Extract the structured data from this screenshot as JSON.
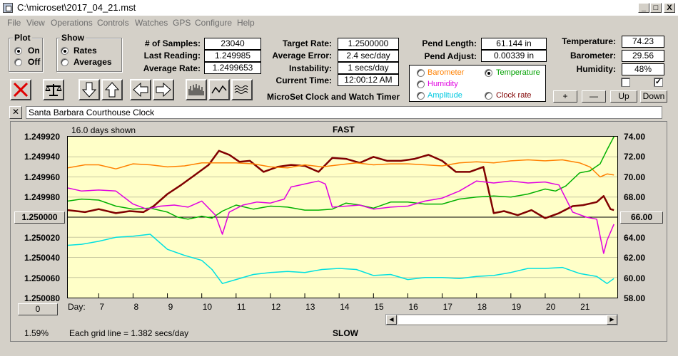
{
  "window": {
    "title": "C:\\microset\\2017_04_21.mst",
    "min": "_",
    "max": "□",
    "close": "X"
  },
  "menu": [
    "File",
    "View",
    "Operations",
    "Controls",
    "Watches",
    "GPS",
    "Configure",
    "Help"
  ],
  "plot_group": {
    "title": "Plot",
    "on": "On",
    "off": "Off",
    "selected": "On"
  },
  "show_group": {
    "title": "Show",
    "rates": "Rates",
    "averages": "Averages",
    "selected": "Rates"
  },
  "stats": {
    "samples_label": "# of Samples:",
    "samples": "23040",
    "last_label": "Last Reading:",
    "last": "1.249985",
    "avg_label": "Average Rate:",
    "avg": "1.2499653"
  },
  "rates": {
    "target_label": "Target Rate:",
    "target": "1.2500000",
    "err_label": "Average Error:",
    "err": "2.4 sec/day",
    "inst_label": "Instability:",
    "inst": "1 secs/day",
    "time_label": "Current Time:",
    "time": "12:00:12 AM"
  },
  "pend": {
    "length_label": "Pend Length:",
    "length": "61.144 in",
    "adjust_label": "Pend Adjust:",
    "adjust": "0.00339 in"
  },
  "env": {
    "temp_label": "Temperature:",
    "temp": "74.23",
    "baro_label": "Barometer:",
    "baro": "29.56",
    "hum_label": "Humidity:",
    "hum": "48%",
    "checkbox2": "✓"
  },
  "sensor_options": {
    "barometer": "Barometer",
    "temperature": "Temperature",
    "humidity": "Humidity",
    "amplitude": "Amplitude",
    "clock_rate": "Clock rate",
    "selected": "Temperature"
  },
  "controls": {
    "plus": "+",
    "minus": "—",
    "up": "Up",
    "down": "Down"
  },
  "app_name": "MicroSet Clock and Watch Timer",
  "clock_name": "Santa Barbara Courthouse Clock",
  "clear_btn": "✕",
  "chart_data": {
    "type": "line",
    "title_top": "FAST",
    "title_bottom": "SLOW",
    "days_shown": "16.0 days shown",
    "grid_note": "Each grid line = 1.382 secs/day",
    "percent": "1.59%",
    "day_label": "Day:",
    "x_days": [
      "7",
      "8",
      "9",
      "10",
      "11",
      "12",
      "13",
      "14",
      "15",
      "16",
      "17",
      "18",
      "19",
      "20",
      "21"
    ],
    "left_ticks": [
      "1.249920",
      "1.249940",
      "1.249960",
      "1.249980",
      "1.250000",
      "1.250020",
      "1.250040",
      "1.250060",
      "1.250080"
    ],
    "right_ticks": [
      "74.00",
      "72.00",
      "70.00",
      "68.00",
      "66.00",
      "64.00",
      "62.00",
      "60.00",
      "58.00"
    ],
    "left_button": "1.250000",
    "right_button": "66.00",
    "bottom_button": "0",
    "left_ylim": [
      1.25008,
      1.24992
    ],
    "right_ylim": [
      58.0,
      74.0
    ],
    "xlim": [
      6.1,
      22.1
    ],
    "series": [
      {
        "name": "Clock rate",
        "color": "#800000",
        "x": [
          6.1,
          6.6,
          7.0,
          7.5,
          7.9,
          8.3,
          8.6,
          9.0,
          9.4,
          9.8,
          10.2,
          10.5,
          10.8,
          11.1,
          11.4,
          11.8,
          12.2,
          12.6,
          13.0,
          13.4,
          13.8,
          14.2,
          14.6,
          15.0,
          15.4,
          15.8,
          16.2,
          16.6,
          17.0,
          17.4,
          17.8,
          18.2,
          18.5,
          18.8,
          19.2,
          19.6,
          20.0,
          20.4,
          20.8,
          21.1,
          21.5,
          21.7,
          21.9,
          22.0
        ],
        "y": [
          1.249993,
          1.249995,
          1.249992,
          1.249996,
          1.249994,
          1.249995,
          1.249989,
          1.249977,
          1.249968,
          1.249958,
          1.249948,
          1.249934,
          1.249938,
          1.249945,
          1.249944,
          1.249955,
          1.24995,
          1.249948,
          1.249949,
          1.249955,
          1.249941,
          1.249942,
          1.249946,
          1.24994,
          1.249944,
          1.249944,
          1.249942,
          1.249938,
          1.249944,
          1.249955,
          1.249955,
          1.24995,
          1.249996,
          1.249994,
          1.249998,
          1.249993,
          1.250001,
          1.249996,
          1.249989,
          1.249988,
          1.249985,
          1.249979,
          1.249992,
          1.249993
        ]
      },
      {
        "name": "Barometer",
        "color": "#ff8000",
        "x": [
          6.1,
          6.6,
          7.0,
          7.5,
          8.0,
          8.5,
          9.0,
          9.5,
          10.0,
          10.5,
          11.0,
          11.5,
          12.0,
          12.5,
          13.0,
          13.5,
          14.0,
          14.5,
          15.0,
          15.5,
          16.0,
          16.5,
          17.0,
          17.5,
          18.0,
          18.5,
          19.0,
          19.5,
          20.0,
          20.5,
          21.0,
          21.3,
          21.6,
          21.8,
          22.0
        ],
        "y": [
          70.9,
          71.2,
          71.2,
          70.8,
          71.3,
          71.2,
          71.0,
          71.1,
          71.4,
          71.4,
          71.4,
          71.3,
          71.0,
          70.9,
          71.2,
          71.0,
          71.2,
          71.4,
          71.2,
          71.3,
          71.3,
          71.2,
          71.1,
          71.4,
          71.5,
          71.4,
          71.6,
          71.7,
          71.6,
          71.7,
          71.4,
          71.0,
          70.0,
          70.3,
          70.2
        ]
      },
      {
        "name": "Temperature",
        "color": "#00b000",
        "x": [
          6.1,
          6.5,
          7.0,
          7.5,
          8.0,
          8.5,
          9.0,
          9.3,
          9.6,
          10.0,
          10.3,
          10.6,
          11.0,
          11.5,
          12.0,
          12.5,
          13.0,
          13.4,
          13.8,
          14.2,
          14.6,
          15.0,
          15.5,
          16.0,
          16.5,
          17.0,
          17.5,
          18.0,
          18.5,
          19.0,
          19.5,
          20.0,
          20.3,
          20.6,
          21.0,
          21.3,
          21.6,
          21.8,
          22.0
        ],
        "y": [
          67.6,
          67.8,
          67.7,
          67.1,
          66.8,
          66.9,
          66.5,
          66.0,
          65.8,
          66.1,
          65.9,
          66.6,
          67.2,
          66.8,
          67.1,
          67.0,
          66.7,
          66.7,
          66.8,
          67.4,
          67.2,
          66.9,
          67.5,
          67.5,
          67.3,
          67.3,
          67.8,
          68.0,
          68.1,
          68.0,
          68.3,
          68.8,
          68.6,
          69.1,
          70.4,
          70.6,
          71.3,
          72.7,
          74.0
        ]
      },
      {
        "name": "Humidity",
        "color": "#e000e0",
        "x": [
          6.1,
          6.5,
          7.0,
          7.5,
          8.0,
          8.4,
          8.8,
          9.2,
          9.6,
          10.0,
          10.4,
          10.6,
          10.8,
          11.2,
          11.6,
          12.0,
          12.4,
          12.6,
          13.0,
          13.4,
          13.6,
          13.8,
          14.2,
          14.6,
          15.0,
          15.5,
          16.0,
          16.5,
          17.0,
          17.5,
          18.0,
          18.5,
          19.0,
          19.5,
          20.0,
          20.4,
          20.8,
          21.2,
          21.5,
          21.7,
          21.8,
          22.0
        ],
        "y": [
          68.9,
          68.6,
          68.7,
          68.6,
          67.3,
          66.8,
          67.1,
          67.2,
          67.0,
          67.6,
          66.2,
          64.3,
          66.5,
          67.2,
          67.5,
          67.4,
          67.8,
          69.0,
          69.3,
          69.6,
          69.3,
          67.0,
          67.1,
          67.2,
          66.8,
          67.0,
          67.1,
          67.6,
          67.9,
          68.6,
          69.6,
          69.4,
          69.6,
          69.4,
          69.5,
          69.2,
          66.5,
          66.0,
          65.8,
          62.4,
          63.7,
          65.3
        ]
      },
      {
        "name": "Amplitude",
        "color": "#00e0e0",
        "x": [
          6.1,
          6.5,
          7.0,
          7.5,
          8.0,
          8.5,
          9.0,
          9.5,
          10.0,
          10.3,
          10.6,
          11.0,
          11.5,
          12.0,
          12.5,
          13.0,
          13.5,
          14.0,
          14.5,
          15.0,
          15.5,
          16.0,
          16.5,
          17.0,
          17.5,
          18.0,
          18.5,
          19.0,
          19.5,
          20.0,
          20.5,
          21.0,
          21.5,
          21.8,
          22.0
        ],
        "y": [
          63.2,
          63.3,
          63.6,
          64.0,
          64.1,
          64.3,
          62.8,
          62.2,
          61.7,
          60.8,
          59.4,
          59.8,
          60.3,
          60.5,
          60.6,
          60.5,
          60.8,
          60.9,
          60.8,
          60.2,
          60.3,
          59.8,
          60.0,
          60.0,
          59.9,
          60.1,
          60.2,
          60.5,
          60.9,
          60.9,
          61.0,
          60.4,
          60.1,
          59.4,
          59.9
        ]
      }
    ]
  }
}
